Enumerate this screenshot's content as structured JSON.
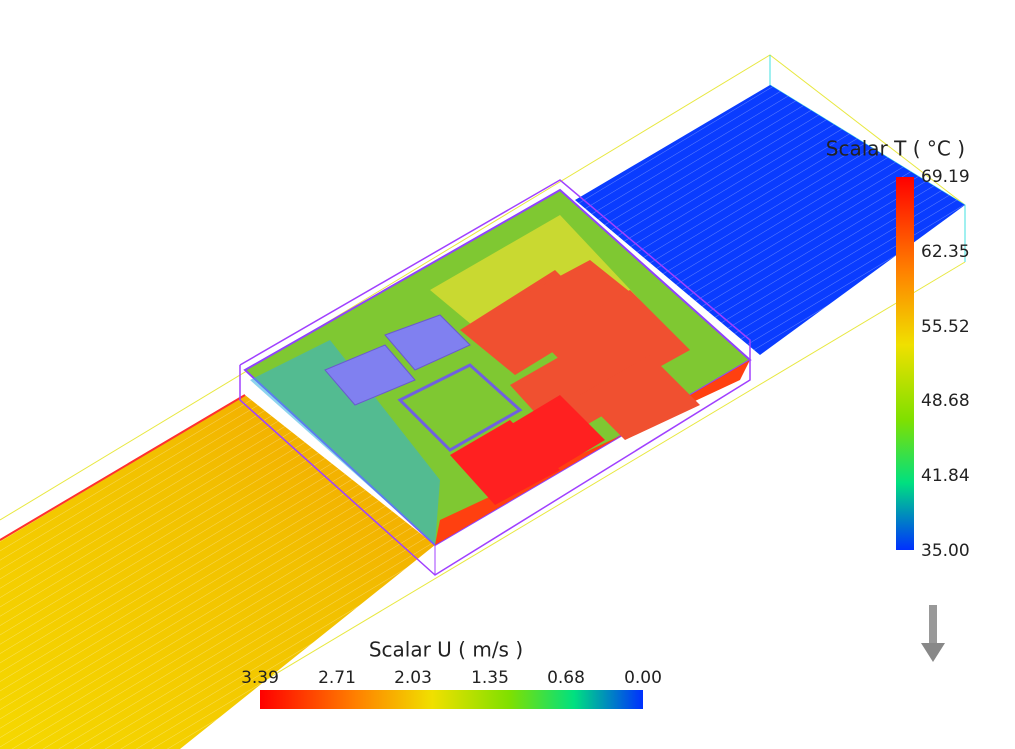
{
  "legend_t": {
    "title": "Scalar T ( °C )",
    "ticks": [
      "69.19",
      "62.35",
      "55.52",
      "48.68",
      "41.84",
      "35.00"
    ]
  },
  "legend_u": {
    "title": "Scalar U  ( m/s )",
    "ticks": [
      "3.39",
      "2.71",
      "2.03",
      "1.35",
      "0.68",
      "0.00"
    ]
  }
}
